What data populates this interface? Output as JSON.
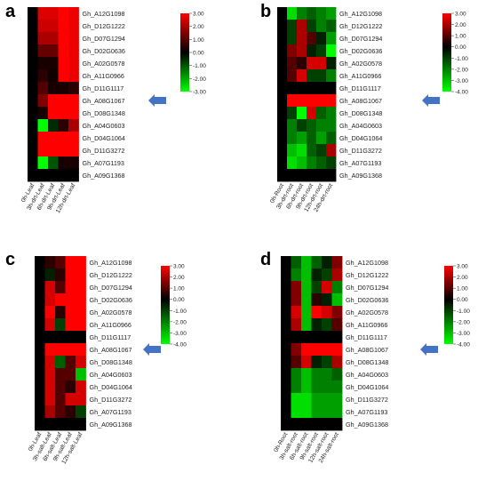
{
  "chart_data": [
    {
      "type": "heatmap",
      "letter": "a",
      "rows": [
        "Gh_A12G1098",
        "Gh_D12G1222",
        "Gh_D07G1294",
        "Gh_D02G0636",
        "Gh_A02G0578",
        "Gh_A11G0966",
        "Gh_D11G1117",
        "Gh_A08G1067",
        "Gh_D08G1348",
        "Gh_A04G0603",
        "Gh_D04G1064",
        "Gh_D11G3272",
        "Gh_A07G1193",
        "Gh_A09G1368"
      ],
      "columns": [
        "0h-Leaf",
        "3h-drt-Leaf",
        "6h-drt-Leaf",
        "9h-drt-Leaf",
        "12h-drt-Leaf"
      ],
      "values": [
        [
          0,
          2.6,
          2.6,
          3.0,
          2.8
        ],
        [
          0,
          2.4,
          2.4,
          3.0,
          2.8
        ],
        [
          0,
          2.0,
          2.0,
          3.0,
          2.8
        ],
        [
          0,
          1.2,
          1.2,
          3.0,
          2.8
        ],
        [
          0,
          0.3,
          0.3,
          3.0,
          2.8
        ],
        [
          0,
          0.5,
          0.2,
          3.0,
          2.8
        ],
        [
          0,
          1.0,
          0.3,
          0.3,
          0.5
        ],
        [
          0,
          1.5,
          3.0,
          3.0,
          3.0
        ],
        [
          0,
          0.3,
          3.0,
          3.0,
          3.0
        ],
        [
          0,
          -3.0,
          -0.5,
          0.5,
          2.0
        ],
        [
          0,
          3.0,
          3.0,
          3.0,
          3.0
        ],
        [
          0,
          3.0,
          3.0,
          3.0,
          3.0
        ],
        [
          0,
          -3.0,
          -1.0,
          0.3,
          0.3
        ],
        [
          0,
          0,
          0,
          0,
          0
        ]
      ],
      "scale_ticks": [
        "3.00",
        "2.00",
        "1.00",
        "0.00",
        "-1.00",
        "-2.00",
        "-3.00"
      ],
      "scale_range": [
        -3,
        3
      ],
      "highlight_row": "Gh_A08G1067",
      "colors": {
        "high": "#ff0000",
        "mid": "#000000",
        "low": "#00ff00",
        "arrow": "#4472c4"
      }
    },
    {
      "type": "heatmap",
      "letter": "b",
      "rows": [
        "Gh_A12G1098",
        "Gh_D12G1222",
        "Gh_D07G1294",
        "Gh_D02G0636",
        "Gh_A02G0578",
        "Gh_A11G0966",
        "Gh_D11G1117",
        "Gh_A08G1067",
        "Gh_D08G1348",
        "Gh_A04G0603",
        "Gh_D04G1064",
        "Gh_D11G3272",
        "Gh_A07G1193",
        "Gh_A09G1368"
      ],
      "columns": [
        "0h-Root",
        "3h-drt-root",
        "6h-drt-root",
        "9h-drt-root",
        "12h-drt-root",
        "24h-drt-root"
      ],
      "values": [
        [
          0,
          -3.5,
          -2.0,
          -1.5,
          -2.0,
          -2.5
        ],
        [
          0,
          -1.0,
          2.0,
          -1.0,
          -2.0,
          -1.5
        ],
        [
          0,
          -1.0,
          2.0,
          1.0,
          -0.5,
          -2.5
        ],
        [
          0,
          1.5,
          2.0,
          -0.5,
          -1.0,
          -4.0
        ],
        [
          0,
          1.0,
          0.5,
          2.5,
          2.5,
          -0.5
        ],
        [
          0,
          1.0,
          2.5,
          -1.0,
          -1.0,
          -2.0
        ],
        [
          0,
          0,
          0,
          0,
          0,
          0
        ],
        [
          0,
          3.0,
          3.0,
          3.0,
          3.0,
          3.0
        ],
        [
          0,
          -1.0,
          -4.0,
          2.5,
          -1.5,
          -2.0
        ],
        [
          0,
          -2.0,
          -1.0,
          -1.5,
          -2.0,
          -2.0
        ],
        [
          0,
          -2.0,
          -2.5,
          -1.5,
          -2.5,
          -1.5
        ],
        [
          0,
          -3.0,
          -3.5,
          -1.5,
          -1.0,
          2.0
        ],
        [
          0,
          -3.5,
          -3.0,
          -2.0,
          -1.5,
          -1.0
        ],
        [
          0,
          0,
          0,
          0,
          0,
          0
        ]
      ],
      "scale_ticks": [
        "3.00",
        "2.00",
        "1.00",
        "0.00",
        "-1.00",
        "-2.00",
        "-3.00",
        "-4.00"
      ],
      "scale_range": [
        -4,
        3
      ],
      "highlight_row": "Gh_A08G1067",
      "colors": {
        "high": "#ff0000",
        "mid": "#000000",
        "low": "#00ff00",
        "arrow": "#4472c4"
      }
    },
    {
      "type": "heatmap",
      "letter": "c",
      "rows": [
        "Gh_A12G1098",
        "Gh_D12G1222",
        "Gh_D07G1294",
        "Gh_D02G0636",
        "Gh_A02G0578",
        "Gh_A11G0966",
        "Gh_D11G1117",
        "Gh_A08G1067",
        "Gh_D08G1348",
        "Gh_A04G0603",
        "Gh_D04G1064",
        "Gh_D11G3272",
        "Gh_A07G1193",
        "Gh_A09G1368"
      ],
      "columns": [
        "0h-Leaf",
        "3h-salt-Leaf",
        "6h-salt-Leaf",
        "9h-salt-Leaf",
        "12h-salt-Leaf"
      ],
      "values": [
        [
          0,
          0.5,
          1.0,
          3.0,
          3.0
        ],
        [
          0,
          -0.5,
          0.5,
          3.0,
          3.0
        ],
        [
          0,
          2.5,
          1.0,
          3.0,
          3.0
        ],
        [
          0,
          2.5,
          3.0,
          3.0,
          3.0
        ],
        [
          0,
          3.0,
          0.5,
          3.0,
          3.0
        ],
        [
          0,
          2.5,
          -1.0,
          3.0,
          3.0
        ],
        [
          0,
          0,
          0,
          0,
          0
        ],
        [
          0,
          3.0,
          3.0,
          3.0,
          3.0
        ],
        [
          0,
          2.5,
          -1.5,
          1.0,
          2.5
        ],
        [
          0,
          2.5,
          1.0,
          1.0,
          -3.0
        ],
        [
          0,
          2.5,
          1.0,
          0.5,
          2.5
        ],
        [
          0,
          2.5,
          1.0,
          2.5,
          2.5
        ],
        [
          0,
          2.0,
          1.0,
          0.5,
          -1.0
        ],
        [
          0,
          0,
          0,
          0,
          0
        ]
      ],
      "scale_ticks": [
        "3.00",
        "2.00",
        "1.00",
        "0.00",
        "-1.00",
        "-2.00",
        "-3.00",
        "-4.00"
      ],
      "scale_range": [
        -4,
        3
      ],
      "highlight_row": "Gh_A08G1067",
      "colors": {
        "high": "#ff0000",
        "mid": "#000000",
        "low": "#00ff00",
        "arrow": "#4472c4"
      }
    },
    {
      "type": "heatmap",
      "letter": "d",
      "rows": [
        "Gh_A12G1098",
        "Gh_D12G1222",
        "Gh_D07G1294",
        "Gh_D02G0636",
        "Gh_A02G0578",
        "Gh_A11G0966",
        "Gh_D11G1117",
        "Gh_A08G1067",
        "Gh_D08G1348",
        "Gh_A04G0603",
        "Gh_D04G1064",
        "Gh_D11G3272",
        "Gh_A07G1193",
        "Gh_A09G1368"
      ],
      "columns": [
        "0h-Root",
        "3h-salt-root",
        "6h-salt-root",
        "9h-salt-root",
        "12h-salt-root",
        "24h-salt-root"
      ],
      "values": [
        [
          0,
          -1.5,
          -3.0,
          -1.5,
          -0.5,
          1.5
        ],
        [
          0,
          -2.0,
          -3.0,
          -0.5,
          -1.0,
          2.0
        ],
        [
          0,
          1.5,
          -3.0,
          -1.0,
          2.5,
          -2.0
        ],
        [
          0,
          1.5,
          -3.0,
          0.5,
          -0.5,
          -3.0
        ],
        [
          0,
          2.5,
          -3.0,
          3.0,
          2.5,
          1.5
        ],
        [
          0,
          2.0,
          -3.0,
          -0.5,
          -1.0,
          1.0
        ],
        [
          0,
          0,
          0,
          0,
          0,
          0
        ],
        [
          0,
          1.5,
          3.0,
          3.0,
          3.0,
          3.0
        ],
        [
          0,
          1.0,
          2.5,
          -0.5,
          -1.0,
          2.0
        ],
        [
          0,
          -2.0,
          -3.0,
          -2.0,
          -2.0,
          -1.5
        ],
        [
          0,
          -2.0,
          -3.0,
          -2.0,
          -2.0,
          -2.0
        ],
        [
          0,
          -3.5,
          -3.5,
          -2.5,
          -2.5,
          -2.5
        ],
        [
          0,
          -3.5,
          -3.5,
          -2.5,
          -2.5,
          -2.5
        ],
        [
          0,
          0,
          0,
          0,
          0,
          0
        ]
      ],
      "scale_ticks": [
        "3.00",
        "2.00",
        "1.00",
        "0.00",
        "-1.00",
        "-2.00",
        "-3.00",
        "-4.00"
      ],
      "scale_range": [
        -4,
        3
      ],
      "highlight_row": "Gh_A08G1067",
      "colors": {
        "high": "#ff0000",
        "mid": "#000000",
        "low": "#00ff00",
        "arrow": "#4472c4"
      }
    }
  ]
}
